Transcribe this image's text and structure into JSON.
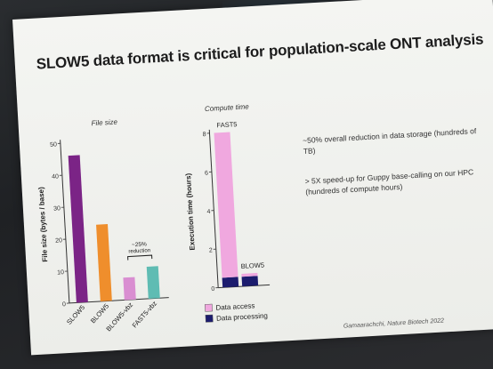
{
  "slide": {
    "title": "SLOW5 data format is critical for population-scale ONT analysis",
    "notes": [
      "~50% overall reduction in data storage (hundreds of TB)",
      "> 5X speed-up for Guppy base-calling on our HPC (hundreds of compute hours)"
    ],
    "citation": "Gamaarachchi, Nature Biotech 2022"
  },
  "colors": {
    "slide_bg": "#f0f1ee",
    "purple": "#7b2486",
    "orange": "#ef8e2c",
    "pink": "#d98ed1",
    "teal": "#5fbcb3",
    "navy": "#1c1c6e",
    "light_pink": "#f0a8df"
  },
  "chart_data": [
    {
      "type": "bar",
      "title": "File size",
      "ylabel": "File size (bytes / base)",
      "ylim": [
        0,
        50
      ],
      "yticks": [
        "0",
        "10",
        "20",
        "30",
        "40",
        "50"
      ],
      "categories": [
        "SLOW5",
        "BLOW5",
        "BLOW5-vbz",
        "FAST5-vbz"
      ],
      "values": [
        46,
        24,
        7,
        10
      ],
      "colors": [
        "#7b2486",
        "#ef8e2c",
        "#d98ed1",
        "#5fbcb3"
      ],
      "annotation": [
        "~25%",
        "reduction"
      ],
      "grid": false
    },
    {
      "type": "bar",
      "title": "Compute time",
      "ylabel": "Execution time (hours)",
      "ylim": [
        0,
        8
      ],
      "yticks": [
        "0",
        "2",
        "4",
        "6",
        "8"
      ],
      "categories": [
        "FAST5",
        "BLOW5"
      ],
      "stacked": true,
      "series": [
        {
          "name": "Data access",
          "values": [
            7.5,
            0.15
          ],
          "color": "#f0a8df"
        },
        {
          "name": "Data processing",
          "values": [
            0.5,
            0.5
          ],
          "color": "#1c1c6e"
        }
      ],
      "bar_labels": [
        "FAST5",
        "BLOW5"
      ],
      "grid": false
    }
  ]
}
